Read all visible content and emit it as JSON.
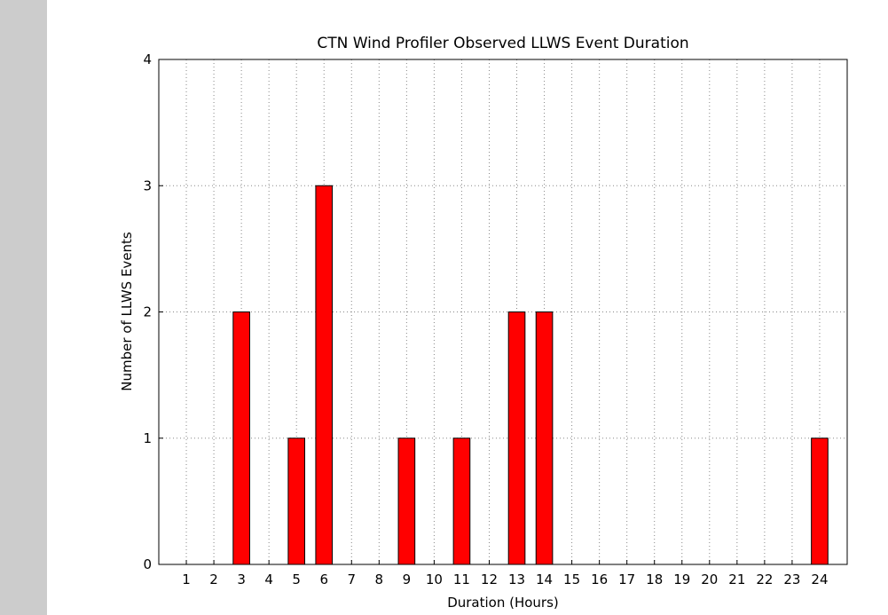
{
  "chart_data": {
    "type": "bar",
    "title": "CTN Wind Profiler Observed LLWS Event Duration",
    "xlabel": "Duration (Hours)",
    "ylabel": "Number of LLWS Events",
    "x": [
      1,
      2,
      3,
      4,
      5,
      6,
      7,
      8,
      9,
      10,
      11,
      12,
      13,
      14,
      15,
      16,
      17,
      18,
      19,
      20,
      21,
      22,
      23,
      24
    ],
    "values": [
      0,
      0,
      2,
      0,
      1,
      3,
      0,
      0,
      1,
      0,
      1,
      0,
      2,
      2,
      0,
      0,
      0,
      0,
      0,
      0,
      0,
      0,
      0,
      1
    ],
    "color": "#ff0000",
    "xlim": [
      0,
      25
    ],
    "xticks": [
      1,
      2,
      3,
      4,
      5,
      6,
      7,
      8,
      9,
      10,
      11,
      12,
      13,
      14,
      15,
      16,
      17,
      18,
      19,
      20,
      21,
      22,
      23,
      24
    ],
    "ylim": [
      0,
      4
    ],
    "yticks": [
      0,
      1,
      2,
      3,
      4
    ],
    "grid": true
  }
}
